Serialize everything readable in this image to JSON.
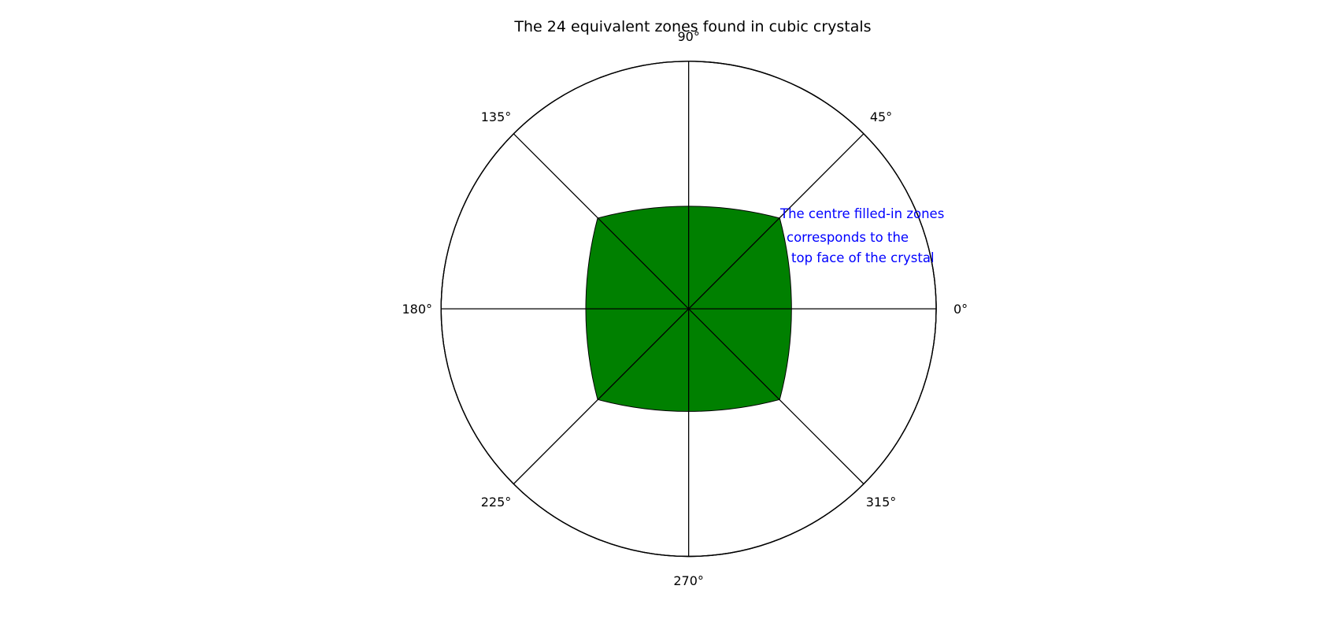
{
  "title": "The 24 equivalent zones found in cubic crystals",
  "colors": {
    "fill": "#008000",
    "line": "#000000",
    "annotation": "#0000ff",
    "background": "#ffffff"
  },
  "angle_labels": [
    "0°",
    "45°",
    "90°",
    "135°",
    "180°",
    "225°",
    "270°",
    "315°"
  ],
  "annotation": {
    "lines": [
      "The centre filled-in zones",
      "corresponds to the",
      "top face of the crystal"
    ]
  }
}
